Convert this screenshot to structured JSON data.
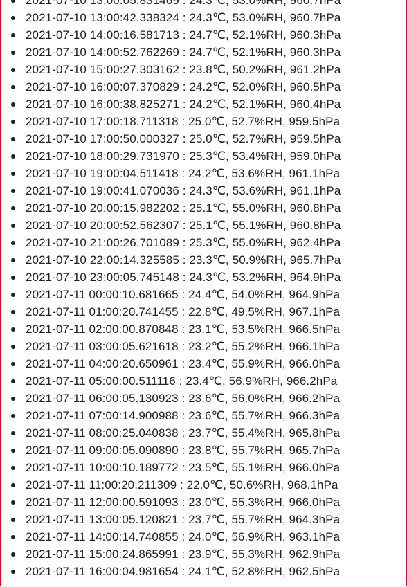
{
  "log": {
    "entries": [
      "2021-07-10 13:00:05.831469 : 24.3℃, 53.0%RH, 960.7hPa",
      "2021-07-10 13:00:42.338324 : 24.3℃, 53.0%RH, 960.7hPa",
      "2021-07-10 14:00:16.581713 : 24.7℃, 52.1%RH, 960.3hPa",
      "2021-07-10 14:00:52.762269 : 24.7℃, 52.1%RH, 960.3hPa",
      "2021-07-10 15:00:27.303162 : 23.8℃, 50.2%RH, 961.2hPa",
      "2021-07-10 16:00:07.370829 : 24.2℃, 52.0%RH, 960.5hPa",
      "2021-07-10 16:00:38.825271 : 24.2℃, 52.1%RH, 960.4hPa",
      "2021-07-10 17:00:18.711318 : 25.0℃, 52.7%RH, 959.5hPa",
      "2021-07-10 17:00:50.000327 : 25.0℃, 52.7%RH, 959.5hPa",
      "2021-07-10 18:00:29.731970 : 25.3℃, 53.4%RH, 959.0hPa",
      "2021-07-10 19:00:04.511418 : 24.2℃, 53.6%RH, 961.1hPa",
      "2021-07-10 19:00:41.070036 : 24.3℃, 53.6%RH, 961.1hPa",
      "2021-07-10 20:00:15.982202 : 25.1℃, 55.0%RH, 960.8hPa",
      "2021-07-10 20:00:52.562307 : 25.1℃, 55.1%RH, 960.8hPa",
      "2021-07-10 21:00:26.701089 : 25.3℃, 55.0%RH, 962.4hPa",
      "2021-07-10 22:00:14.325585 : 23.3℃, 50.9%RH, 965.7hPa",
      "2021-07-10 23:00:05.745148 : 24.3℃, 53.2%RH, 964.9hPa",
      "2021-07-11 00:00:10.681665 : 24.4℃, 54.0%RH, 964.9hPa",
      "2021-07-11 01:00:20.741455 : 22.8℃, 49.5%RH, 967.1hPa",
      "2021-07-11 02:00:00.870848 : 23.1℃, 53.5%RH, 966.5hPa",
      "2021-07-11 03:00:05.621618 : 23.2℃, 55.2%RH, 966.1hPa",
      "2021-07-11 04:00:20.650961 : 23.4℃, 55.9%RH, 966.0hPa",
      "2021-07-11 05:00:00.511116 : 23.4℃, 56.9%RH, 966.2hPa",
      "2021-07-11 06:00:05.130923 : 23.6℃, 56.0%RH, 966.2hPa",
      "2021-07-11 07:00:14.900988 : 23.6℃, 55.7%RH, 966.3hPa",
      "2021-07-11 08:00:25.040838 : 23.7℃, 55.4%RH, 965.8hPa",
      "2021-07-11 09:00:05.090890 : 23.8℃, 55.7%RH, 965.7hPa",
      "2021-07-11 10:00:10.189772 : 23.5℃, 55.1%RH, 966.0hPa",
      "2021-07-11 11:00:20.211309 : 22.0℃, 50.6%RH, 968.1hPa",
      "2021-07-11 12:00:00.591093 : 23.0℃, 55.3%RH, 966.0hPa",
      "2021-07-11 13:00:05.120821 : 23.7℃, 55.7%RH, 964.3hPa",
      "2021-07-11 14:00:14.740855 : 24.0℃, 56.9%RH, 963.1hPa",
      "2021-07-11 15:00:24.865991 : 23.9℃, 55.3%RH, 962.9hPa",
      "2021-07-11 16:00:04.981654 : 24.1℃, 52.8%RH, 962.5hPa"
    ]
  }
}
